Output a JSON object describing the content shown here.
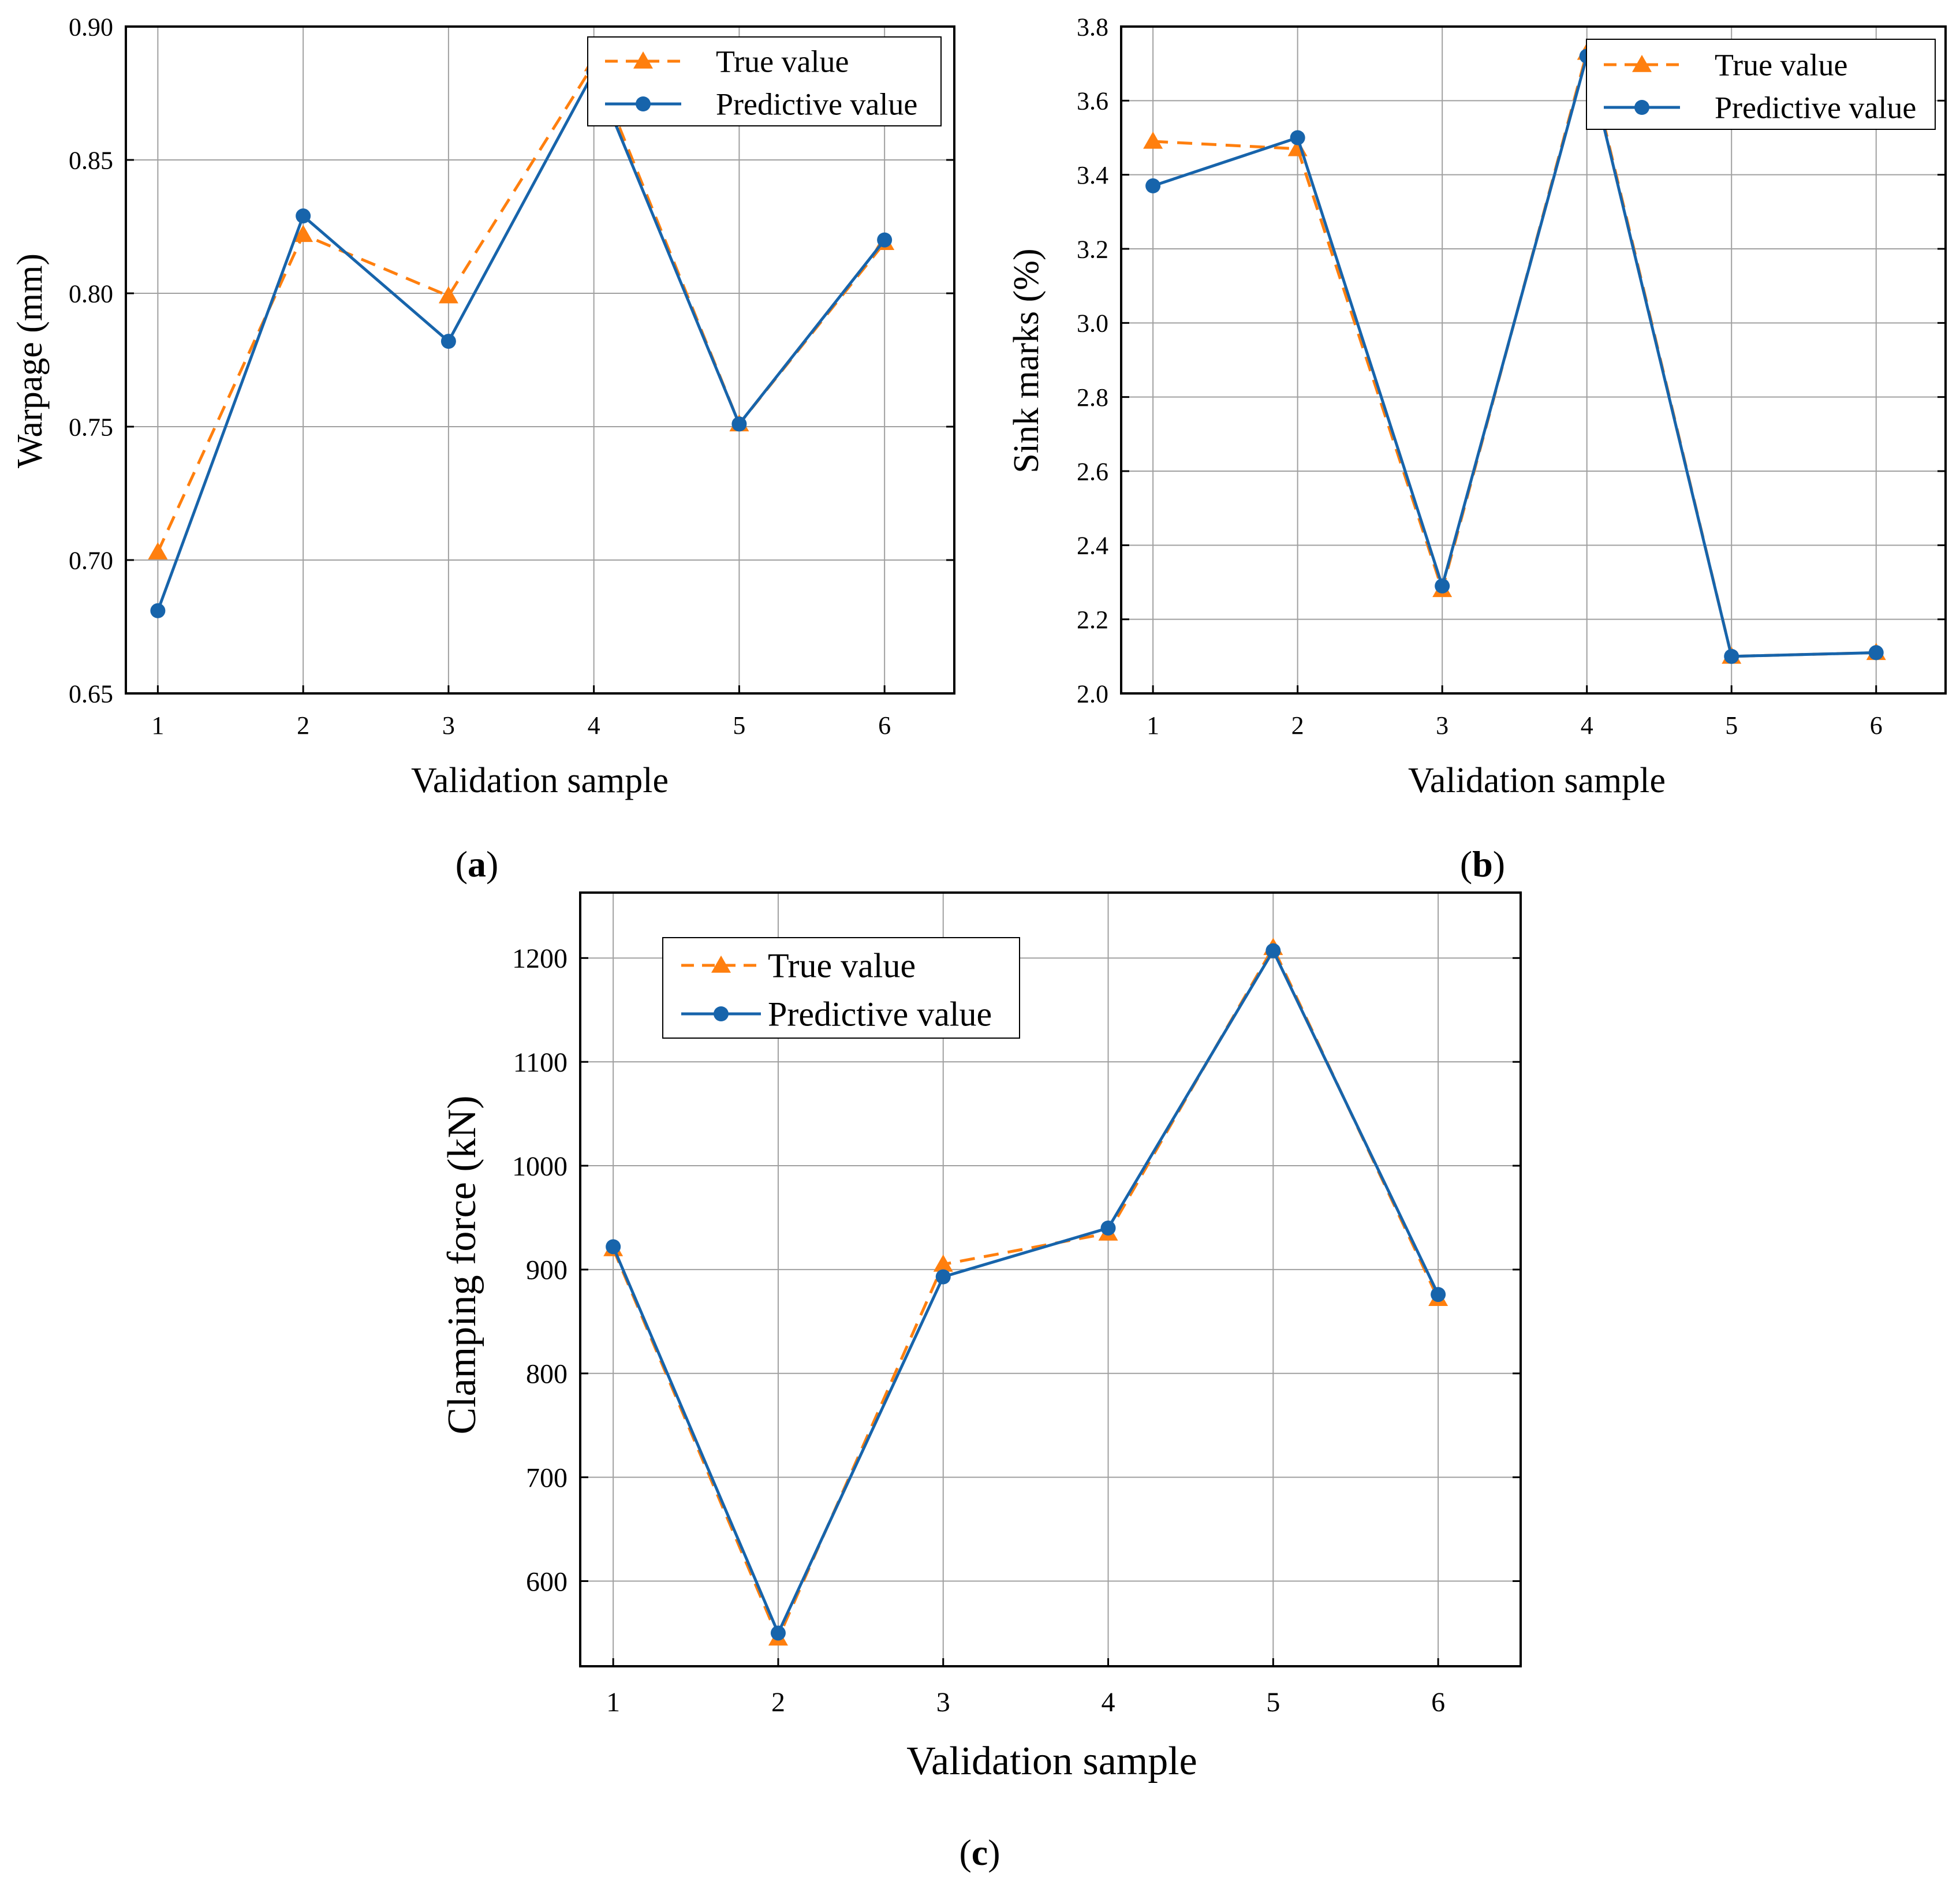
{
  "chart_data": [
    {
      "id": "a",
      "type": "line",
      "panel_label": "a",
      "xlabel": "Validation sample",
      "ylabel": "Warpage (mm)",
      "ylim": [
        0.65,
        0.9
      ],
      "yticks": [
        "0.65",
        "0.70",
        "0.75",
        "0.80",
        "0.85",
        "0.90"
      ],
      "x": [
        1,
        2,
        3,
        4,
        5,
        6
      ],
      "xticks": [
        "1",
        "2",
        "3",
        "4",
        "5",
        "6"
      ],
      "grid": true,
      "legend_position": "top-right",
      "series": [
        {
          "name": "True value",
          "values": [
            0.703,
            0.822,
            0.799,
            0.886,
            0.751,
            0.819
          ],
          "color": "#FF7F0E",
          "style": "dashed",
          "marker": "triangle"
        },
        {
          "name": "Predictive value",
          "values": [
            0.681,
            0.829,
            0.782,
            0.883,
            0.751,
            0.82
          ],
          "color": "#1764AB",
          "style": "solid",
          "marker": "circle"
        }
      ]
    },
    {
      "id": "b",
      "type": "line",
      "panel_label": "b",
      "xlabel": "Validation sample",
      "ylabel": "Sink marks (%)",
      "ylim": [
        2.0,
        3.8
      ],
      "yticks": [
        "2.0",
        "2.2",
        "2.4",
        "2.6",
        "2.8",
        "3.0",
        "3.2",
        "3.4",
        "3.6",
        "3.8"
      ],
      "x": [
        1,
        2,
        3,
        4,
        5,
        6
      ],
      "xticks": [
        "1",
        "2",
        "3",
        "4",
        "5",
        "6"
      ],
      "grid": true,
      "legend_position": "top-right",
      "series": [
        {
          "name": "True value",
          "values": [
            3.49,
            3.47,
            2.28,
            3.73,
            2.1,
            2.11
          ],
          "color": "#FF7F0E",
          "style": "dashed",
          "marker": "triangle"
        },
        {
          "name": "Predictive value",
          "values": [
            3.37,
            3.5,
            2.29,
            3.72,
            2.1,
            2.11
          ],
          "color": "#1764AB",
          "style": "solid",
          "marker": "circle"
        }
      ]
    },
    {
      "id": "c",
      "type": "line",
      "panel_label": "c",
      "xlabel": "Validation sample",
      "ylabel": "Clamping force (kN)",
      "ylim": [
        518,
        1263
      ],
      "yticks": [
        "600",
        "700",
        "800",
        "900",
        "1000",
        "1100",
        "1200"
      ],
      "ytick_values": [
        600,
        700,
        800,
        900,
        1000,
        1100,
        1200
      ],
      "x": [
        1,
        2,
        3,
        4,
        5,
        6
      ],
      "xticks": [
        "1",
        "2",
        "3",
        "4",
        "5",
        "6"
      ],
      "grid": true,
      "legend_position": "top-left",
      "series": [
        {
          "name": "True value",
          "values": [
            920,
            545,
            905,
            935,
            1210,
            872
          ],
          "color": "#FF7F0E",
          "style": "dashed",
          "marker": "triangle"
        },
        {
          "name": "Predictive value",
          "values": [
            922,
            550,
            893,
            940,
            1207,
            876
          ],
          "color": "#1764AB",
          "style": "solid",
          "marker": "circle"
        }
      ]
    }
  ]
}
